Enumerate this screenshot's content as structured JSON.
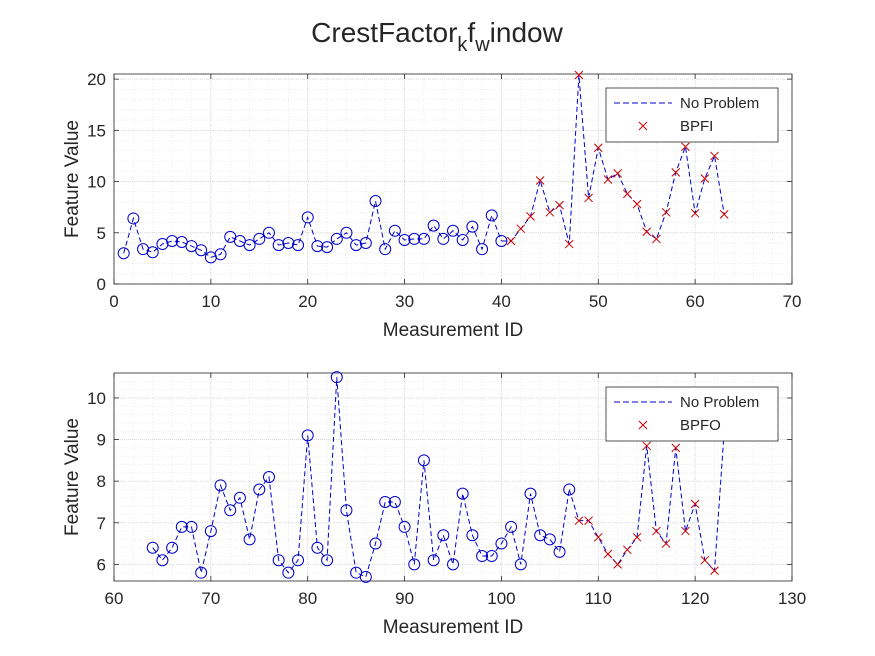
{
  "chart_data": [
    {
      "type": "line",
      "title": "CrestFactor_kf_window",
      "title_parts": [
        "CrestFactor",
        "k",
        "f",
        "w",
        "indow"
      ],
      "xlabel": "Measurement ID",
      "ylabel": "Feature Value",
      "xlim": [
        0,
        70
      ],
      "ylim": [
        0,
        20.5
      ],
      "xticks": [
        0,
        10,
        20,
        30,
        40,
        50,
        60,
        70
      ],
      "yticks": [
        0,
        5,
        10,
        15,
        20
      ],
      "xtick_labels": [
        "0",
        "10",
        "20",
        "30",
        "40",
        "50",
        "60",
        "70"
      ],
      "ytick_labels": [
        "0",
        "5",
        "10",
        "15",
        "20"
      ],
      "grid": true,
      "minor_grid": true,
      "legend": {
        "position": "top-right",
        "entries": [
          "No Problem",
          "BPFI"
        ]
      },
      "series": [
        {
          "name": "No Problem",
          "marker": "circle",
          "color": "#0000cc",
          "line": "dashed",
          "x": [
            1,
            2,
            3,
            4,
            5,
            6,
            7,
            8,
            9,
            10,
            11,
            12,
            13,
            14,
            15,
            16,
            17,
            18,
            19,
            20,
            21,
            22,
            23,
            24,
            25,
            26,
            27,
            28,
            29,
            30,
            31,
            32,
            33,
            34,
            35,
            36,
            37,
            38,
            39,
            40
          ],
          "y": [
            3.0,
            6.4,
            3.4,
            3.1,
            3.9,
            4.2,
            4.1,
            3.7,
            3.3,
            2.6,
            2.9,
            4.6,
            4.2,
            3.8,
            4.4,
            5.0,
            3.8,
            4.0,
            3.8,
            6.5,
            3.7,
            3.6,
            4.4,
            5.0,
            3.8,
            4.0,
            8.1,
            3.4,
            5.2,
            4.3,
            4.4,
            4.4,
            5.7,
            4.4,
            5.2,
            4.3,
            5.6,
            3.4,
            6.7,
            4.2
          ]
        },
        {
          "name": "BPFI",
          "marker": "x",
          "color": "#cc0000",
          "line": "dashed",
          "x": [
            41,
            42,
            43,
            44,
            45,
            46,
            47,
            48,
            49,
            50,
            51,
            52,
            53,
            54,
            55,
            56,
            57,
            58,
            59,
            60,
            61,
            62,
            63
          ],
          "y": [
            4.2,
            5.4,
            6.6,
            10.1,
            7.0,
            7.7,
            3.9,
            20.4,
            8.4,
            13.3,
            10.2,
            10.8,
            8.8,
            7.8,
            5.1,
            4.4,
            7.0,
            10.9,
            13.4,
            6.9,
            10.3,
            12.5,
            6.8
          ]
        }
      ]
    },
    {
      "type": "line",
      "title": "",
      "xlabel": "Measurement ID",
      "ylabel": "Feature Value",
      "xlim": [
        60,
        130
      ],
      "ylim": [
        5.6,
        10.6
      ],
      "xticks": [
        60,
        70,
        80,
        90,
        100,
        110,
        120,
        130
      ],
      "yticks": [
        6,
        7,
        8,
        9,
        10
      ],
      "xtick_labels": [
        "60",
        "70",
        "80",
        "90",
        "100",
        "110",
        "120",
        "130"
      ],
      "ytick_labels": [
        "6",
        "7",
        "8",
        "9",
        "10"
      ],
      "grid": true,
      "minor_grid": true,
      "legend": {
        "position": "top-right",
        "entries": [
          "No Problem",
          "BPFO"
        ]
      },
      "series": [
        {
          "name": "No Problem",
          "marker": "circle",
          "color": "#0000cc",
          "line": "dashed",
          "x": [
            64,
            65,
            66,
            67,
            68,
            69,
            70,
            71,
            72,
            73,
            74,
            75,
            76,
            77,
            78,
            79,
            80,
            81,
            82,
            83,
            84,
            85,
            86,
            87,
            88,
            89,
            90,
            91,
            92,
            93,
            94,
            95,
            96,
            97,
            98,
            99,
            100,
            101,
            102,
            103,
            104,
            105,
            106,
            107
          ],
          "y": [
            6.4,
            6.1,
            6.4,
            6.9,
            6.9,
            5.8,
            6.8,
            7.9,
            7.3,
            7.6,
            6.6,
            7.8,
            8.1,
            6.1,
            5.8,
            6.1,
            9.1,
            6.4,
            6.1,
            10.5,
            7.3,
            5.8,
            5.7,
            6.5,
            7.5,
            7.5,
            6.9,
            6.0,
            8.5,
            6.1,
            6.7,
            6.0,
            7.7,
            6.7,
            6.2,
            6.2,
            6.5,
            6.9,
            6.0,
            7.7,
            6.7,
            6.6,
            6.3,
            7.8
          ]
        },
        {
          "name": "BPFO",
          "marker": "x",
          "color": "#cc0000",
          "line": "dashed",
          "x": [
            108,
            109,
            110,
            111,
            112,
            113,
            114,
            115,
            116,
            117,
            118,
            119,
            120,
            121,
            122,
            123
          ],
          "y": [
            7.05,
            7.05,
            6.65,
            6.25,
            6.0,
            6.35,
            6.65,
            8.85,
            6.8,
            6.5,
            8.8,
            6.8,
            7.45,
            6.1,
            5.85,
            9.2
          ]
        }
      ]
    }
  ]
}
